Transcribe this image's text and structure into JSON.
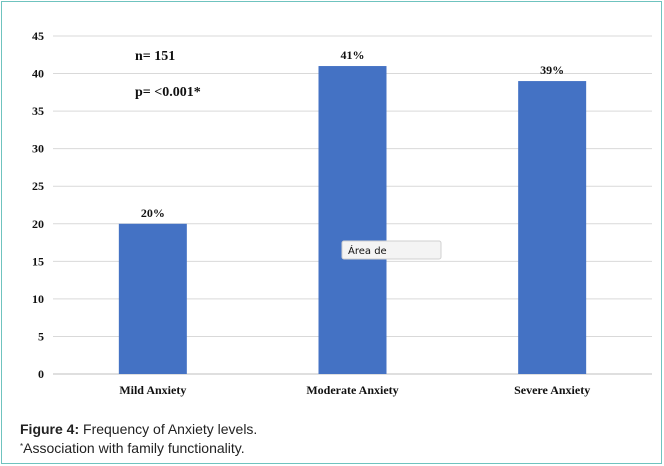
{
  "chart_data": {
    "type": "bar",
    "categories": [
      "Mild Anxiety",
      "Moderate Anxiety",
      "Severe Anxiety"
    ],
    "values": [
      20,
      41,
      39
    ],
    "data_labels": [
      "20%",
      "41%",
      "39%"
    ],
    "ylim": [
      0,
      45
    ],
    "yticks": [
      0,
      5,
      10,
      15,
      20,
      25,
      30,
      35,
      40,
      45
    ],
    "grid": true,
    "bar_color": "#4472c4",
    "annotations": [
      "n= 151",
      "p= <0.001*"
    ]
  },
  "tooltip": {
    "text": "Área de"
  },
  "caption": {
    "figure_label": "Figure 4:",
    "figure_text": " Frequency of Anxiety levels.",
    "footnote_mark": "*",
    "footnote_text": "Association with family functionality."
  }
}
